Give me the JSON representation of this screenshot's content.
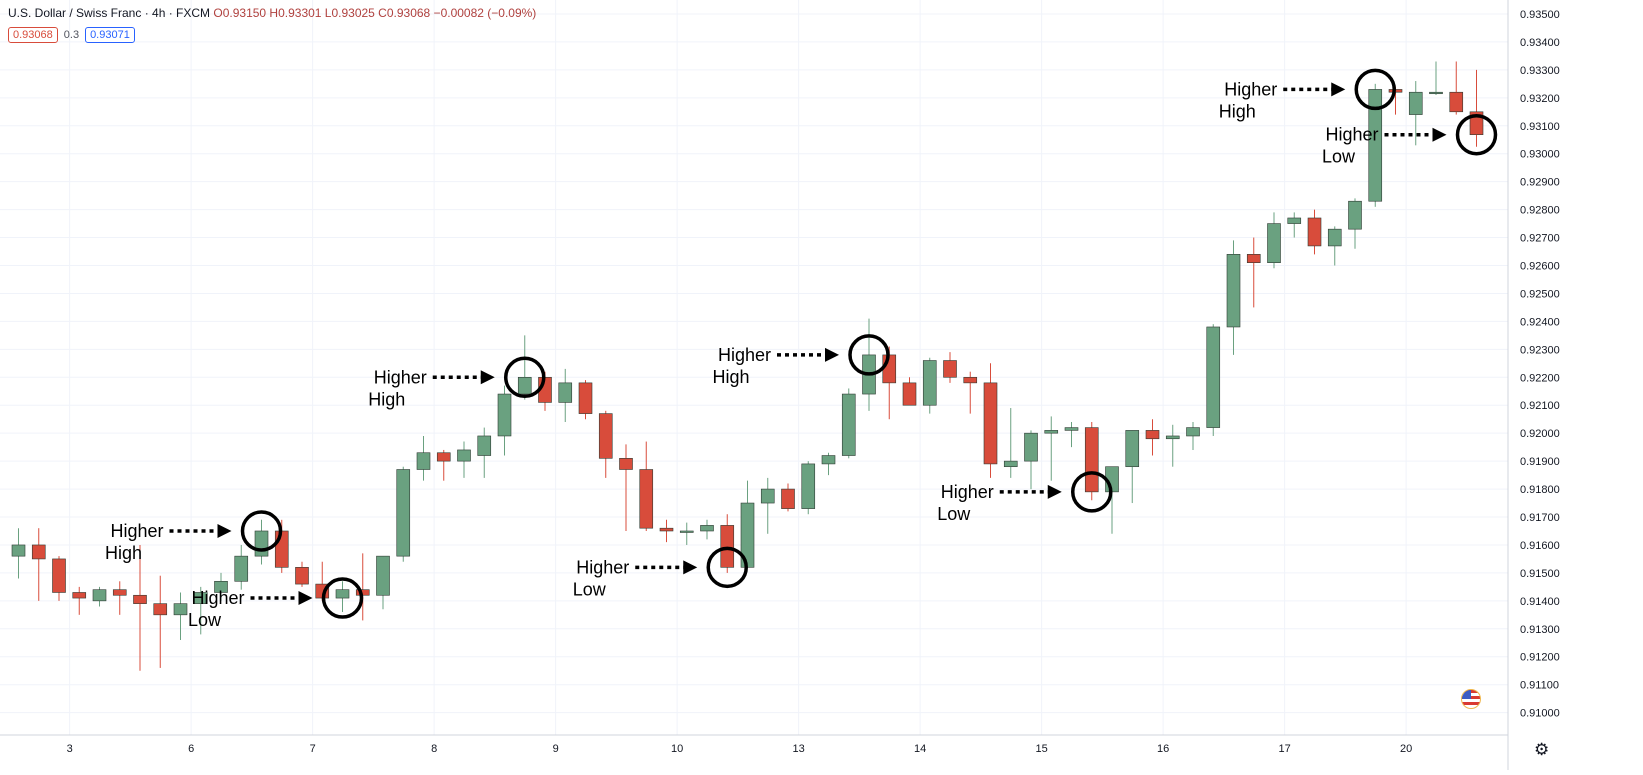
{
  "header": {
    "symbol": "U.S. Dollar / Swiss Franc · 4h · FXCM",
    "ohlc": "O0.93150 H0.93301 L0.93025 C0.93068 −0.00082 (−0.09%)",
    "bid": "0.93068",
    "spread": "0.3",
    "ask": "0.93071"
  },
  "colors": {
    "up": "#6aa180",
    "down": "#d84c3b",
    "grid": "#f0f3fa",
    "annotation": "#000000"
  },
  "icons": {
    "currency": "us-flag-icon",
    "settings": "gear-icon"
  },
  "chart_data": {
    "type": "candlestick",
    "ylim": [
      0.9092,
      0.9355
    ],
    "y_ticks": [
      "0.91000",
      "0.91100",
      "0.91200",
      "0.91300",
      "0.91400",
      "0.91500",
      "0.91600",
      "0.91700",
      "0.91800",
      "0.91900",
      "0.92000",
      "0.92100",
      "0.92200",
      "0.92300",
      "0.92400",
      "0.92500",
      "0.92600",
      "0.92700",
      "0.92800",
      "0.92900",
      "0.93000",
      "0.93100",
      "0.93200",
      "0.93300",
      "0.93400",
      "0.93500"
    ],
    "x_ticks": [
      {
        "label": "3",
        "index": 3
      },
      {
        "label": "6",
        "index": 9
      },
      {
        "label": "7",
        "index": 15
      },
      {
        "label": "8",
        "index": 21
      },
      {
        "label": "9",
        "index": 27
      },
      {
        "label": "10",
        "index": 33
      },
      {
        "label": "13",
        "index": 39
      },
      {
        "label": "14",
        "index": 45
      },
      {
        "label": "15",
        "index": 51
      },
      {
        "label": "16",
        "index": 57
      },
      {
        "label": "17",
        "index": 63
      },
      {
        "label": "20",
        "index": 69
      }
    ],
    "candles": [
      {
        "o": 0.9156,
        "h": 0.9166,
        "l": 0.9148,
        "c": 0.916
      },
      {
        "o": 0.916,
        "h": 0.9166,
        "l": 0.914,
        "c": 0.9155
      },
      {
        "o": 0.9155,
        "h": 0.9156,
        "l": 0.914,
        "c": 0.9143
      },
      {
        "o": 0.9143,
        "h": 0.9145,
        "l": 0.9135,
        "c": 0.9141
      },
      {
        "o": 0.914,
        "h": 0.9145,
        "l": 0.9138,
        "c": 0.9144
      },
      {
        "o": 0.9144,
        "h": 0.9147,
        "l": 0.9135,
        "c": 0.9142
      },
      {
        "o": 0.9142,
        "h": 0.916,
        "l": 0.9115,
        "c": 0.9139
      },
      {
        "o": 0.9139,
        "h": 0.9149,
        "l": 0.9116,
        "c": 0.9135
      },
      {
        "o": 0.9135,
        "h": 0.9143,
        "l": 0.9126,
        "c": 0.9139
      },
      {
        "o": 0.9139,
        "h": 0.9145,
        "l": 0.9128,
        "c": 0.9143
      },
      {
        "o": 0.9143,
        "h": 0.915,
        "l": 0.914,
        "c": 0.9147
      },
      {
        "o": 0.9147,
        "h": 0.916,
        "l": 0.9144,
        "c": 0.9156
      },
      {
        "o": 0.9156,
        "h": 0.9169,
        "l": 0.9153,
        "c": 0.9165
      },
      {
        "o": 0.9165,
        "h": 0.9169,
        "l": 0.915,
        "c": 0.9152
      },
      {
        "o": 0.9152,
        "h": 0.9154,
        "l": 0.9145,
        "c": 0.9146
      },
      {
        "o": 0.9146,
        "h": 0.9154,
        "l": 0.914,
        "c": 0.9141
      },
      {
        "o": 0.9141,
        "h": 0.9147,
        "l": 0.9136,
        "c": 0.9144
      },
      {
        "o": 0.9144,
        "h": 0.9157,
        "l": 0.9133,
        "c": 0.9142
      },
      {
        "o": 0.9142,
        "h": 0.9156,
        "l": 0.9137,
        "c": 0.9156
      },
      {
        "o": 0.9156,
        "h": 0.9188,
        "l": 0.9154,
        "c": 0.9187
      },
      {
        "o": 0.9187,
        "h": 0.9199,
        "l": 0.9183,
        "c": 0.9193
      },
      {
        "o": 0.9193,
        "h": 0.9194,
        "l": 0.9183,
        "c": 0.919
      },
      {
        "o": 0.919,
        "h": 0.9197,
        "l": 0.9184,
        "c": 0.9194
      },
      {
        "o": 0.9192,
        "h": 0.9202,
        "l": 0.9184,
        "c": 0.9199
      },
      {
        "o": 0.9199,
        "h": 0.9217,
        "l": 0.9192,
        "c": 0.9214
      },
      {
        "o": 0.9214,
        "h": 0.9235,
        "l": 0.9212,
        "c": 0.922
      },
      {
        "o": 0.922,
        "h": 0.9222,
        "l": 0.9208,
        "c": 0.9211
      },
      {
        "o": 0.9211,
        "h": 0.9223,
        "l": 0.9204,
        "c": 0.9218
      },
      {
        "o": 0.9218,
        "h": 0.9219,
        "l": 0.9205,
        "c": 0.9207
      },
      {
        "o": 0.9207,
        "h": 0.9208,
        "l": 0.9184,
        "c": 0.9191
      },
      {
        "o": 0.9191,
        "h": 0.9196,
        "l": 0.9165,
        "c": 0.9187
      },
      {
        "o": 0.9187,
        "h": 0.9197,
        "l": 0.9165,
        "c": 0.9166
      },
      {
        "o": 0.9166,
        "h": 0.9169,
        "l": 0.9161,
        "c": 0.9165
      },
      {
        "o": 0.9165,
        "h": 0.9168,
        "l": 0.916,
        "c": 0.9165
      },
      {
        "o": 0.9165,
        "h": 0.9169,
        "l": 0.9162,
        "c": 0.9167
      },
      {
        "o": 0.9167,
        "h": 0.9171,
        "l": 0.915,
        "c": 0.9152
      },
      {
        "o": 0.9152,
        "h": 0.9183,
        "l": 0.9152,
        "c": 0.9175
      },
      {
        "o": 0.9175,
        "h": 0.9184,
        "l": 0.9164,
        "c": 0.918
      },
      {
        "o": 0.918,
        "h": 0.9182,
        "l": 0.9172,
        "c": 0.9173
      },
      {
        "o": 0.9173,
        "h": 0.919,
        "l": 0.9171,
        "c": 0.9189
      },
      {
        "o": 0.9189,
        "h": 0.9193,
        "l": 0.9185,
        "c": 0.9192
      },
      {
        "o": 0.9192,
        "h": 0.9216,
        "l": 0.9191,
        "c": 0.9214
      },
      {
        "o": 0.9214,
        "h": 0.9241,
        "l": 0.9208,
        "c": 0.9228
      },
      {
        "o": 0.9228,
        "h": 0.9231,
        "l": 0.9205,
        "c": 0.9218
      },
      {
        "o": 0.9218,
        "h": 0.922,
        "l": 0.921,
        "c": 0.921
      },
      {
        "o": 0.921,
        "h": 0.9227,
        "l": 0.9207,
        "c": 0.9226
      },
      {
        "o": 0.9226,
        "h": 0.9229,
        "l": 0.9218,
        "c": 0.922
      },
      {
        "o": 0.922,
        "h": 0.9222,
        "l": 0.9207,
        "c": 0.9218
      },
      {
        "o": 0.9218,
        "h": 0.9225,
        "l": 0.9184,
        "c": 0.9189
      },
      {
        "o": 0.9188,
        "h": 0.9209,
        "l": 0.9184,
        "c": 0.919
      },
      {
        "o": 0.919,
        "h": 0.9201,
        "l": 0.918,
        "c": 0.92
      },
      {
        "o": 0.92,
        "h": 0.9206,
        "l": 0.9183,
        "c": 0.9201
      },
      {
        "o": 0.9201,
        "h": 0.9204,
        "l": 0.9195,
        "c": 0.9202
      },
      {
        "o": 0.9202,
        "h": 0.9204,
        "l": 0.9176,
        "c": 0.9179
      },
      {
        "o": 0.9179,
        "h": 0.9188,
        "l": 0.9164,
        "c": 0.9188
      },
      {
        "o": 0.9188,
        "h": 0.9201,
        "l": 0.9175,
        "c": 0.9201
      },
      {
        "o": 0.9201,
        "h": 0.9205,
        "l": 0.9192,
        "c": 0.9198
      },
      {
        "o": 0.9198,
        "h": 0.9203,
        "l": 0.9188,
        "c": 0.9199
      },
      {
        "o": 0.9199,
        "h": 0.9204,
        "l": 0.9194,
        "c": 0.9202
      },
      {
        "o": 0.9202,
        "h": 0.9239,
        "l": 0.9199,
        "c": 0.9238
      },
      {
        "o": 0.9238,
        "h": 0.9269,
        "l": 0.9228,
        "c": 0.9264
      },
      {
        "o": 0.9264,
        "h": 0.927,
        "l": 0.9245,
        "c": 0.9261
      },
      {
        "o": 0.9261,
        "h": 0.9279,
        "l": 0.9259,
        "c": 0.9275
      },
      {
        "o": 0.9275,
        "h": 0.9279,
        "l": 0.927,
        "c": 0.9277
      },
      {
        "o": 0.9277,
        "h": 0.928,
        "l": 0.9264,
        "c": 0.9267
      },
      {
        "o": 0.9267,
        "h": 0.9274,
        "l": 0.926,
        "c": 0.9273
      },
      {
        "o": 0.9273,
        "h": 0.9284,
        "l": 0.9266,
        "c": 0.9283
      },
      {
        "o": 0.9283,
        "h": 0.9325,
        "l": 0.9281,
        "c": 0.9323
      },
      {
        "o": 0.9323,
        "h": 0.9324,
        "l": 0.9314,
        "c": 0.9322
      },
      {
        "o": 0.9314,
        "h": 0.9326,
        "l": 0.9303,
        "c": 0.9322
      },
      {
        "o": 0.9322,
        "h": 0.9333,
        "l": 0.9321,
        "c": 0.9322
      },
      {
        "o": 0.9322,
        "h": 0.9333,
        "l": 0.9314,
        "c": 0.9315
      },
      {
        "o": 0.9315,
        "h": 0.933,
        "l": 0.93025,
        "c": 0.93068
      }
    ],
    "annotations": [
      {
        "line1": "Higher",
        "line2": "High",
        "index": 12,
        "price": 0.9165
      },
      {
        "line1": "Higher",
        "line2": "Low",
        "index": 16,
        "price": 0.9141
      },
      {
        "line1": "Higher",
        "line2": "High",
        "index": 25,
        "price": 0.922
      },
      {
        "line1": "Higher",
        "line2": "Low",
        "index": 35,
        "price": 0.9152
      },
      {
        "line1": "Higher",
        "line2": "High",
        "index": 42,
        "price": 0.9228
      },
      {
        "line1": "Higher",
        "line2": "Low",
        "index": 53,
        "price": 0.9179
      },
      {
        "line1": "Higher",
        "line2": "High",
        "index": 67,
        "price": 0.9323
      },
      {
        "line1": "Higher",
        "line2": "Low",
        "index": 72,
        "price": 0.93068
      }
    ]
  }
}
